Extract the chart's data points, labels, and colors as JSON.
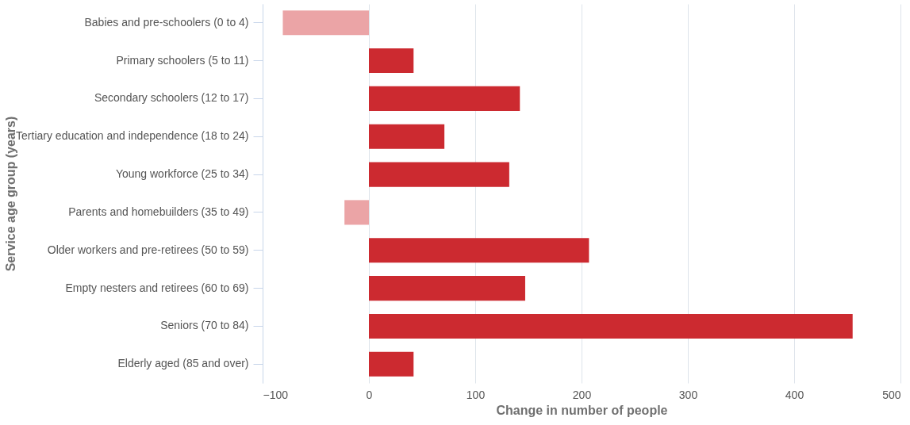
{
  "chart_data": {
    "type": "bar",
    "orientation": "horizontal",
    "xlabel": "Change in number of people",
    "ylabel": "Service age group (years)",
    "categories": [
      "Babies and pre-schoolers (0 to 4)",
      "Primary schoolers (5 to 11)",
      "Secondary schoolers (12 to 17)",
      "Tertiary education and independence (18 to 24)",
      "Young workforce (25 to 34)",
      "Parents and homebuilders (35 to 49)",
      "Older workers and pre-retirees (50 to 59)",
      "Empty nesters and retirees (60 to 69)",
      "Seniors (70 to 84)",
      "Elderly aged (85 and over)"
    ],
    "values": [
      -81,
      42,
      142,
      71,
      132,
      -23,
      207,
      147,
      455,
      42
    ],
    "colors": [
      "#eba4a6",
      "#cc2a30",
      "#cc2a30",
      "#cc2a30",
      "#cc2a30",
      "#eba4a6",
      "#cc2a30",
      "#cc2a30",
      "#cc2a30",
      "#cc2a30"
    ],
    "xlim": [
      -100,
      500
    ],
    "xticks": [
      -100,
      0,
      100,
      200,
      300,
      400,
      500
    ],
    "grid": "x"
  }
}
